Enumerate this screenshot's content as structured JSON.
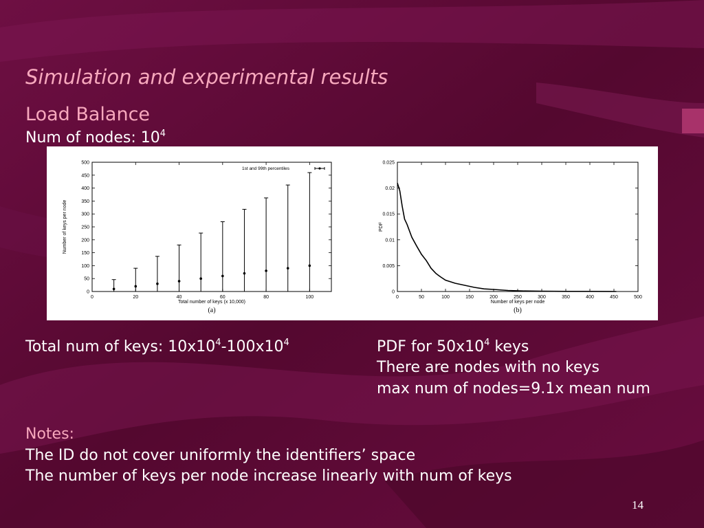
{
  "slide": {
    "title": "Simulation and experimental results",
    "subtitle": "Load Balance",
    "nodes_line": {
      "prefix": "Num of nodes: 10",
      "sup": "4"
    },
    "keys_line": {
      "a": "Total num of keys: 10x10",
      "a_sup": "4",
      "b": "-100x10",
      "b_sup": "4"
    },
    "pdf_line": {
      "a": "PDF for 50x10",
      "a_sup": "4",
      "b": " keys"
    },
    "pdf_note_1": "There are nodes with no keys",
    "pdf_note_2": "max num of nodes=9.1x mean num",
    "notes_heading": "Notes:",
    "note_1": "The ID do not cover uniformly the identifiers’ space",
    "note_2": "The number of keys per node increase linearly with num of keys",
    "page_number": "14",
    "colors": {
      "background": "#5a0a35",
      "accent_text": "#f7a8bd",
      "text": "#ffffff"
    }
  },
  "chart_data": [
    {
      "type": "scatter",
      "caption": "(a)",
      "xlabel": "Total number of keys (x 10,000)",
      "ylabel": "Number of keys per node",
      "xlim": [
        0,
        110
      ],
      "ylim": [
        0,
        500
      ],
      "xticks": [
        0,
        20,
        40,
        60,
        80,
        100
      ],
      "yticks": [
        0,
        50,
        100,
        150,
        200,
        250,
        300,
        350,
        400,
        450,
        500
      ],
      "legend": "top-right",
      "series": [
        {
          "name": "1st and 99th percentiles",
          "x": [
            10,
            20,
            30,
            40,
            50,
            60,
            70,
            80,
            90,
            100
          ],
          "y": [
            10,
            20,
            30,
            40,
            50,
            60,
            70,
            80,
            90,
            100
          ],
          "low": [
            0,
            0,
            0,
            0,
            0,
            0,
            0,
            0,
            0,
            0
          ],
          "high": [
            46,
            90,
            136,
            180,
            226,
            270,
            318,
            362,
            412,
            460
          ]
        }
      ]
    },
    {
      "type": "line",
      "caption": "(b)",
      "xlabel": "Number of keys per node",
      "ylabel": "PDF",
      "xlim": [
        0,
        500
      ],
      "ylim": [
        0,
        0.025
      ],
      "xticks": [
        0,
        50,
        100,
        150,
        200,
        250,
        300,
        350,
        400,
        450,
        500
      ],
      "yticks": [
        0,
        0.005,
        0.01,
        0.015,
        0.02,
        0.025
      ],
      "series": [
        {
          "x": [
            0,
            5,
            10,
            15,
            20,
            30,
            40,
            50,
            60,
            70,
            80,
            90,
            100,
            120,
            140,
            160,
            180,
            200,
            230,
            260,
            300,
            350,
            400,
            455
          ],
          "y": [
            0.021,
            0.0195,
            0.0165,
            0.014,
            0.013,
            0.0105,
            0.0088,
            0.0072,
            0.006,
            0.0045,
            0.0035,
            0.0028,
            0.0022,
            0.0016,
            0.0012,
            0.0008,
            0.0005,
            0.0004,
            0.0002,
            0.0001,
            5e-05,
            3e-05,
            2e-05,
            0
          ]
        }
      ]
    }
  ]
}
